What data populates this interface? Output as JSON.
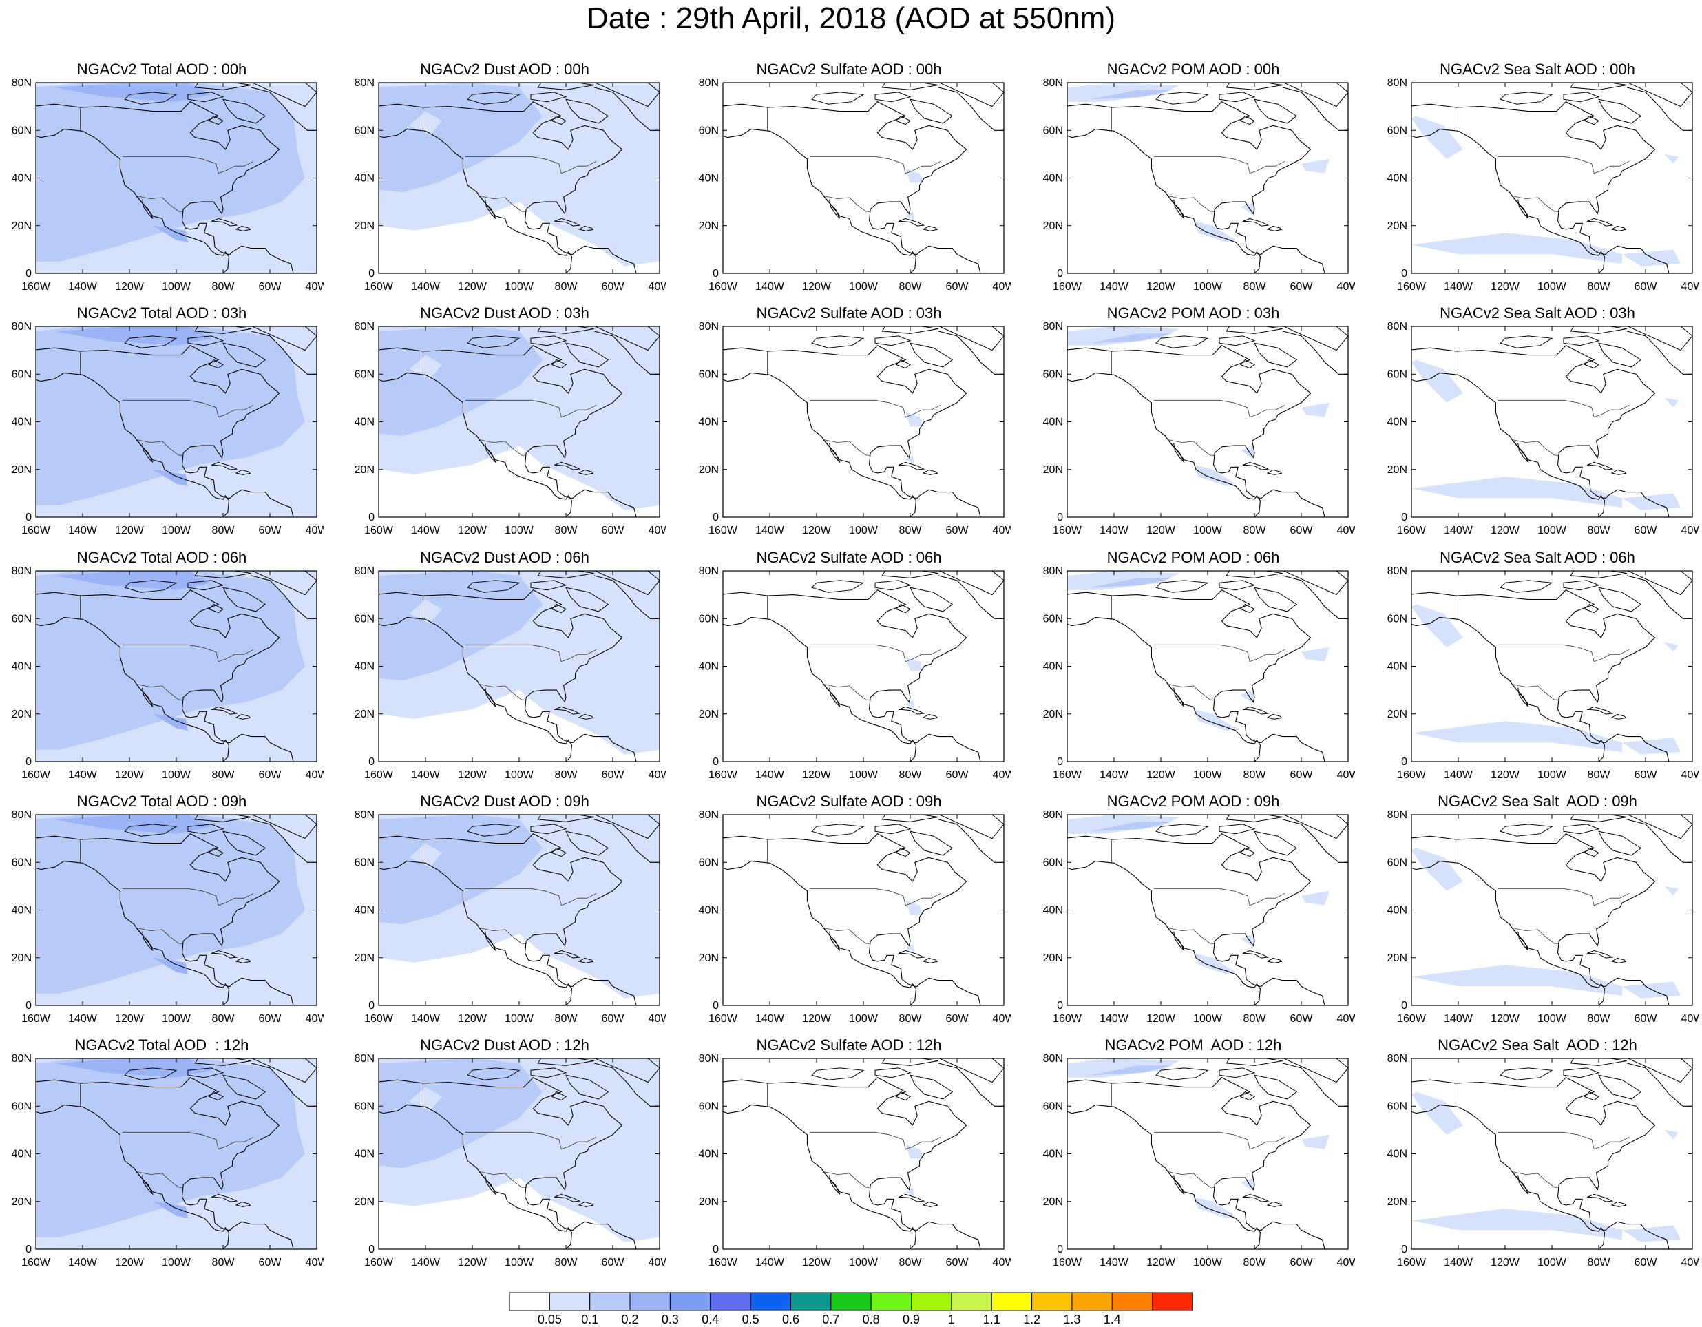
{
  "title": "Date : 29th April, 2018 (AOD at 550nm)",
  "axes": {
    "lat_labels": [
      "0",
      "20N",
      "40N",
      "60N",
      "80N"
    ],
    "lon_labels": [
      "160W",
      "140W",
      "120W",
      "100W",
      "80W",
      "60W",
      "40W"
    ],
    "lat_range": [
      0,
      80
    ],
    "lon_range": [
      -160,
      -40
    ]
  },
  "panels": [
    [
      {
        "title": "NGACv2 Total AOD : 00h",
        "species": "total"
      },
      {
        "title": "NGACv2 Dust AOD : 00h",
        "species": "dust"
      },
      {
        "title": "NGACv2 Sulfate AOD : 00h",
        "species": "sulfate"
      },
      {
        "title": "NGACv2 POM AOD : 00h",
        "species": "pom"
      },
      {
        "title": "NGACv2 Sea Salt AOD : 00h",
        "species": "seasalt"
      }
    ],
    [
      {
        "title": "NGACv2 Total AOD : 03h",
        "species": "total"
      },
      {
        "title": "NGACv2 Dust AOD : 03h",
        "species": "dust"
      },
      {
        "title": "NGACv2 Sulfate AOD : 03h",
        "species": "sulfate"
      },
      {
        "title": "NGACv2 POM AOD : 03h",
        "species": "pom"
      },
      {
        "title": "NGACv2 Sea Salt AOD : 03h",
        "species": "seasalt"
      }
    ],
    [
      {
        "title": "NGACv2 Total AOD : 06h",
        "species": "total"
      },
      {
        "title": "NGACv2 Dust AOD : 06h",
        "species": "dust"
      },
      {
        "title": "NGACv2 Sulfate AOD : 06h",
        "species": "sulfate"
      },
      {
        "title": "NGACv2 POM AOD : 06h",
        "species": "pom"
      },
      {
        "title": "NGACv2 Sea Salt AOD : 06h",
        "species": "seasalt"
      }
    ],
    [
      {
        "title": "NGACv2 Total AOD : 09h",
        "species": "total"
      },
      {
        "title": "NGACv2 Dust AOD : 09h",
        "species": "dust"
      },
      {
        "title": "NGACv2 Sulfate AOD : 09h",
        "species": "sulfate"
      },
      {
        "title": "NGACv2 POM AOD : 09h",
        "species": "pom"
      },
      {
        "title": "NGACv2 Sea Salt  AOD : 09h",
        "species": "seasalt"
      }
    ],
    [
      {
        "title": "NGACv2 Total AOD  : 12h",
        "species": "total"
      },
      {
        "title": "NGACv2 Dust AOD : 12h",
        "species": "dust"
      },
      {
        "title": "NGACv2 Sulfate AOD : 12h",
        "species": "sulfate"
      },
      {
        "title": "NGACv2 POM  AOD : 12h",
        "species": "pom"
      },
      {
        "title": "NGACv2 Sea Salt  AOD : 12h",
        "species": "seasalt"
      }
    ]
  ],
  "colorbar": {
    "labels": [
      "0.05",
      "0.1",
      "0.2",
      "0.3",
      "0.4",
      "0.5",
      "0.6",
      "0.7",
      "0.8",
      "0.9",
      "1",
      "1.1",
      "1.2",
      "1.3",
      "1.4"
    ],
    "colors": [
      "#ffffff",
      "#d6e2fb",
      "#b8cbf8",
      "#9ab4f5",
      "#7c9cf2",
      "#5f6ef0",
      "#0b63f0",
      "#0b968e",
      "#19c819",
      "#6ff517",
      "#a5f50b",
      "#c8f54c",
      "#ffff00",
      "#ffc400",
      "#ffa500",
      "#ff8000",
      "#ff2800"
    ]
  },
  "colors": {
    "low_aod": "#d6e2fb",
    "mid_aod": "#b8cbf8",
    "high_aod": "#9ab4f5",
    "coast": "#000000"
  }
}
